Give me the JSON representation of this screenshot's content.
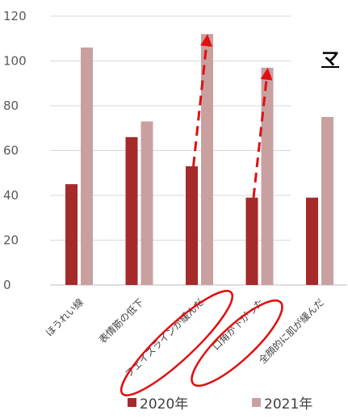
{
  "chart_data": {
    "type": "bar",
    "categories": [
      "ほうれい線",
      "表情筋の低下",
      "フェイスラインが緩んだ",
      "口角が下がった",
      "全顔的に肌が緩んだ"
    ],
    "series": [
      {
        "name": "2020年",
        "values": [
          45,
          66,
          53,
          39,
          39
        ],
        "color": "#a52a2a"
      },
      {
        "name": "2021年",
        "values": [
          106,
          73,
          112,
          97,
          75
        ],
        "color": "#c9a0a0"
      }
    ],
    "ylim": [
      0,
      120
    ],
    "yticks": [
      "0",
      "20",
      "40",
      "60",
      "80",
      "100",
      "120"
    ],
    "grid": true,
    "legend_position": "bottom",
    "annotations": {
      "arrows": [
        {
          "from_category": 2,
          "from_value": 53,
          "to_value": 112
        },
        {
          "from_category": 3,
          "from_value": 39,
          "to_value": 97
        }
      ],
      "circled_categories": [
        2,
        3
      ],
      "annotation_color": "#e01010"
    },
    "clipped_title_text": "マ"
  }
}
